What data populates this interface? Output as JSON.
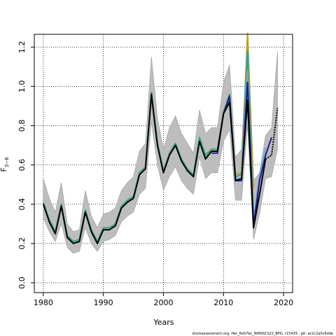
{
  "chart_data": {
    "type": "line",
    "title": "",
    "xlabel": "Years",
    "ylabel_main": "F",
    "ylabel_sub": "3−6",
    "xlim": [
      1978.5,
      2021.5
    ],
    "ylim": [
      -0.05,
      1.265
    ],
    "x_ticks": [
      1980,
      1990,
      2000,
      2010,
      2020
    ],
    "y_ticks": [
      0.0,
      0.2,
      0.4,
      0.6,
      0.8,
      1.0,
      1.2
    ],
    "x_tick_labels": [
      "1980",
      "1990",
      "2000",
      "2010",
      "2020"
    ],
    "y_tick_labels": [
      "0.0",
      "0.2",
      "0.4",
      "0.6",
      "0.8",
      "1.0",
      "1.2"
    ],
    "grid": true,
    "confidence_band": {
      "x": [
        1980,
        1981,
        1982,
        1983,
        1984,
        1985,
        1986,
        1987,
        1988,
        1989,
        1990,
        1991,
        1992,
        1993,
        1994,
        1995,
        1996,
        1997,
        1998,
        1999,
        2000,
        2001,
        2002,
        2003,
        2004,
        2005,
        2006,
        2007,
        2008,
        2009,
        2010,
        2011,
        2012,
        2013,
        2014,
        2015,
        2016,
        2017,
        2018,
        2019
      ],
      "lower": [
        0.33,
        0.26,
        0.21,
        0.3,
        0.18,
        0.15,
        0.16,
        0.28,
        0.2,
        0.16,
        0.21,
        0.22,
        0.24,
        0.31,
        0.34,
        0.36,
        0.45,
        0.48,
        0.82,
        0.6,
        0.47,
        0.54,
        0.59,
        0.52,
        0.48,
        0.45,
        0.64,
        0.53,
        0.56,
        0.56,
        0.72,
        0.78,
        0.42,
        0.42,
        0.8,
        0.22,
        0.35,
        0.53,
        0.54,
        0.68
      ],
      "upper": [
        0.53,
        0.43,
        0.36,
        0.51,
        0.3,
        0.26,
        0.27,
        0.47,
        0.34,
        0.28,
        0.35,
        0.36,
        0.38,
        0.47,
        0.51,
        0.54,
        0.67,
        0.71,
        1.15,
        0.84,
        0.68,
        0.79,
        0.85,
        0.76,
        0.71,
        0.66,
        0.88,
        0.76,
        0.79,
        0.79,
        1.02,
        1.11,
        0.64,
        0.68,
        1.26,
        0.52,
        0.56,
        0.75,
        0.79,
        1.18
      ]
    },
    "series": [
      {
        "color": "#000000",
        "dashed_from_index": 37,
        "x": [
          1980,
          1981,
          1982,
          1983,
          1984,
          1985,
          1986,
          1987,
          1988,
          1989,
          1990,
          1991,
          1992,
          1993,
          1994,
          1995,
          1996,
          1997,
          1998,
          1999,
          2000,
          2001,
          2002,
          2003,
          2004,
          2005,
          2006,
          2007,
          2008,
          2009,
          2010,
          2011,
          2012,
          2013,
          2014,
          2015,
          2016,
          2017,
          2018,
          2019
        ],
        "values": [
          0.4,
          0.31,
          0.25,
          0.39,
          0.23,
          0.2,
          0.21,
          0.36,
          0.26,
          0.2,
          0.27,
          0.27,
          0.29,
          0.38,
          0.41,
          0.43,
          0.55,
          0.58,
          0.96,
          0.7,
          0.56,
          0.65,
          0.7,
          0.62,
          0.57,
          0.54,
          0.72,
          0.63,
          0.67,
          0.67,
          0.86,
          0.92,
          0.52,
          0.53,
          0.93,
          0.28,
          0.45,
          0.63,
          0.65,
          0.89
        ]
      },
      {
        "color": "#1a1a8c",
        "x": [
          2008,
          2009,
          2010,
          2011,
          2012,
          2013,
          2014,
          2015,
          2016,
          2017,
          2018
        ],
        "values": [
          0.66,
          0.66,
          0.86,
          0.95,
          0.52,
          0.52,
          1.02,
          0.29,
          0.52,
          0.65,
          0.74
        ]
      },
      {
        "color": "#6fa8dc",
        "x": [
          2012,
          2013,
          2014,
          2015,
          2016,
          2017
        ],
        "values": [
          0.53,
          0.53,
          1.08,
          0.32,
          0.55,
          0.69
        ]
      },
      {
        "color": "#2aa88a",
        "x": [
          1980,
          1981,
          1982,
          1983,
          1984,
          1985,
          1986,
          1987,
          1988,
          1989,
          1990,
          1991,
          1992,
          1993,
          1994,
          1995,
          1996,
          1997,
          1998,
          1999,
          2000,
          2001,
          2002,
          2003,
          2004,
          2005,
          2006,
          2007,
          2008,
          2009,
          2010,
          2011,
          2012,
          2013,
          2014,
          2015
        ],
        "values": [
          0.41,
          0.32,
          0.26,
          0.4,
          0.24,
          0.21,
          0.22,
          0.37,
          0.27,
          0.21,
          0.28,
          0.28,
          0.3,
          0.39,
          0.42,
          0.44,
          0.56,
          0.59,
          0.97,
          0.71,
          0.57,
          0.66,
          0.71,
          0.63,
          0.58,
          0.55,
          0.74,
          0.65,
          0.68,
          0.68,
          0.87,
          0.96,
          0.54,
          0.55,
          1.18,
          0.34
        ]
      },
      {
        "color": "#c0a020",
        "x": [
          1980,
          1981,
          1982,
          1983,
          1984,
          1985,
          1986,
          1987,
          1988,
          1989,
          1990,
          1991,
          1992,
          1993,
          1994,
          1995,
          1996,
          1997,
          1998,
          1999,
          2000,
          2001,
          2002,
          2003,
          2004,
          2005,
          2006,
          2007,
          2008,
          2009,
          2010,
          2011,
          2012,
          2013,
          2014,
          2015
        ],
        "values": [
          0.41,
          0.32,
          0.26,
          0.4,
          0.24,
          0.21,
          0.22,
          0.37,
          0.27,
          0.21,
          0.28,
          0.28,
          0.3,
          0.39,
          0.42,
          0.44,
          0.56,
          0.59,
          0.96,
          0.71,
          0.57,
          0.66,
          0.71,
          0.63,
          0.58,
          0.55,
          0.73,
          0.65,
          0.68,
          0.68,
          0.87,
          0.95,
          0.55,
          0.56,
          1.27,
          0.48
        ]
      },
      {
        "color": "#66b030",
        "x": [
          1980,
          1981,
          1982,
          1983,
          1984,
          1985,
          1986,
          1987,
          1988,
          1989,
          1990,
          1991,
          1992,
          1993,
          1994,
          1995,
          1996,
          1997,
          1998,
          1999,
          2000,
          2001,
          2002,
          2003,
          2004,
          2005,
          2006,
          2007,
          2008,
          2009,
          2010,
          2011,
          2012,
          2013,
          2014,
          2015
        ],
        "values": [
          0.4,
          0.31,
          0.25,
          0.39,
          0.23,
          0.2,
          0.21,
          0.36,
          0.26,
          0.2,
          0.27,
          0.27,
          0.29,
          0.38,
          0.41,
          0.43,
          0.55,
          0.58,
          0.95,
          0.7,
          0.56,
          0.65,
          0.7,
          0.62,
          0.57,
          0.54,
          0.72,
          0.64,
          0.67,
          0.67,
          0.86,
          0.94,
          0.55,
          0.56,
          1.22,
          0.49
        ]
      }
    ]
  },
  "footer": {
    "text": "stockassessment.org, Her_6aS7bc_WKNSCS22_BPG, r15439 , git: ec2c2a0c6dde"
  }
}
